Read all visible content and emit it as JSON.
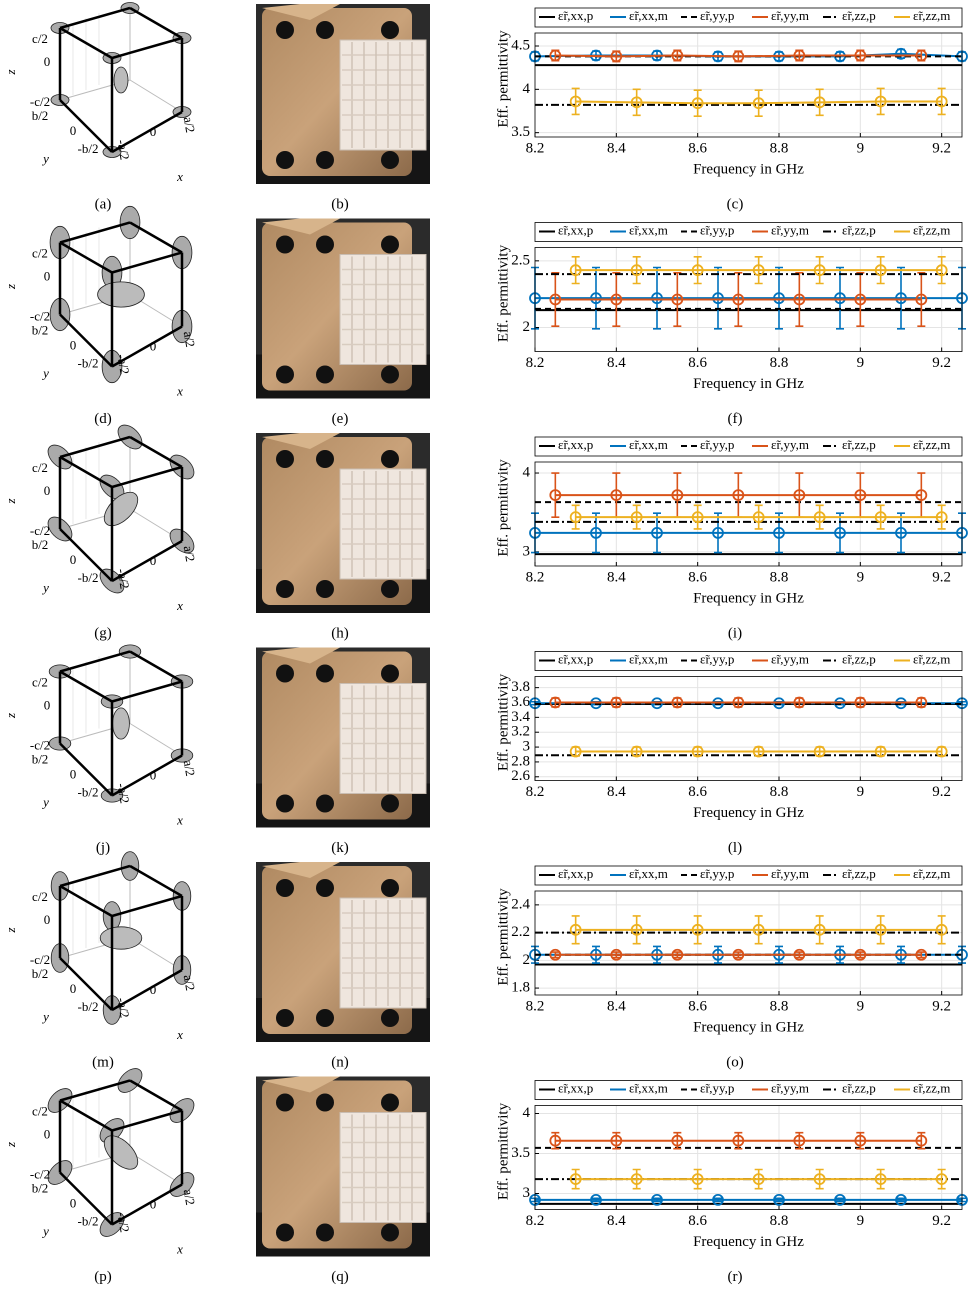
{
  "rows": [
    {
      "captions": [
        "(a)",
        "(b)",
        "(c)"
      ]
    },
    {
      "captions": [
        "(d)",
        "(e)",
        "(f)"
      ]
    },
    {
      "captions": [
        "(g)",
        "(h)",
        "(i)"
      ]
    },
    {
      "captions": [
        "(j)",
        "(k)",
        "(l)"
      ]
    },
    {
      "captions": [
        "(m)",
        "(n)",
        "(o)"
      ]
    },
    {
      "captions": [
        "(p)",
        "(q)",
        "(r)"
      ]
    }
  ],
  "cube_labels": {
    "z_top": "c/2",
    "z_mid": "0",
    "z_bot": "-c/2",
    "y_top": "b/2",
    "y_mid": "0",
    "y_bot": "-b/2",
    "x_mid": "0",
    "x_neg": "-a/2",
    "x_pos": "a/2",
    "z": "z",
    "y": "y",
    "x": "x"
  },
  "chart_data": [
    {
      "type": "line",
      "ylabel": "Eff. permittivity",
      "xlabel": "Frequency in GHz",
      "xlim": [
        8.2,
        9.25
      ],
      "xticks": [
        8.2,
        8.4,
        8.6,
        8.8,
        9,
        9.2
      ],
      "ylim": [
        3.45,
        4.65
      ],
      "yticks": [
        3.5,
        4,
        4.5
      ],
      "grid": true,
      "series": [
        {
          "name": "ε̃r,xx,p",
          "color": "#000000",
          "linestyle": "solid",
          "x": [
            8.2,
            9.25
          ],
          "values": [
            4.28,
            4.28
          ]
        },
        {
          "name": "ε̃r,xx,m",
          "color": "#0072bd",
          "linestyle": "solid",
          "x": [
            8.2,
            8.35,
            8.5,
            8.65,
            8.8,
            8.95,
            9.1,
            9.25
          ],
          "values": [
            4.38,
            4.39,
            4.39,
            4.38,
            4.38,
            4.38,
            4.41,
            4.38
          ],
          "errors": [
            0.05,
            0.05,
            0.05,
            0.05,
            0.05,
            0.05,
            0.05,
            0.05
          ]
        },
        {
          "name": "ε̃r,yy,p",
          "color": "#000000",
          "linestyle": "dashed",
          "x": [
            8.2,
            9.25
          ],
          "values": [
            4.38,
            4.38
          ]
        },
        {
          "name": "ε̃r,yy,m",
          "color": "#d95319",
          "linestyle": "solid",
          "x": [
            8.25,
            8.4,
            8.55,
            8.7,
            8.85,
            9.0,
            9.15
          ],
          "values": [
            4.39,
            4.38,
            4.39,
            4.38,
            4.39,
            4.39,
            4.39
          ],
          "errors": [
            0.06,
            0.06,
            0.06,
            0.06,
            0.06,
            0.06,
            0.06
          ]
        },
        {
          "name": "ε̃r,zz,p",
          "color": "#000000",
          "linestyle": "dashdot",
          "x": [
            8.2,
            9.25
          ],
          "values": [
            3.82,
            3.82
          ]
        },
        {
          "name": "ε̃r,zz,m",
          "color": "#edb120",
          "linestyle": "solid",
          "x": [
            8.3,
            8.45,
            8.6,
            8.75,
            8.9,
            9.05,
            9.2
          ],
          "values": [
            3.86,
            3.85,
            3.84,
            3.84,
            3.85,
            3.86,
            3.86
          ],
          "errors": [
            0.15,
            0.15,
            0.15,
            0.15,
            0.15,
            0.15,
            0.15
          ]
        }
      ]
    },
    {
      "type": "line",
      "ylabel": "Eff. permittivity",
      "xlabel": "Frequency in GHz",
      "xlim": [
        8.2,
        9.25
      ],
      "xticks": [
        8.2,
        8.4,
        8.6,
        8.8,
        9,
        9.2
      ],
      "ylim": [
        1.82,
        2.6
      ],
      "yticks": [
        2,
        2.5
      ],
      "grid": true,
      "series": [
        {
          "name": "ε̃r,xx,p",
          "color": "#000000",
          "linestyle": "solid",
          "x": [
            8.2,
            9.25
          ],
          "values": [
            2.13,
            2.13
          ]
        },
        {
          "name": "ε̃r,xx,m",
          "color": "#0072bd",
          "linestyle": "solid",
          "x": [
            8.2,
            8.35,
            8.5,
            8.65,
            8.8,
            8.95,
            9.1,
            9.25
          ],
          "values": [
            2.22,
            2.22,
            2.22,
            2.22,
            2.22,
            2.22,
            2.22,
            2.22
          ],
          "errors": [
            0.23,
            0.23,
            0.23,
            0.23,
            0.23,
            0.23,
            0.23,
            0.23
          ]
        },
        {
          "name": "ε̃r,yy,p",
          "color": "#000000",
          "linestyle": "dashed",
          "x": [
            8.2,
            9.25
          ],
          "values": [
            2.14,
            2.14
          ]
        },
        {
          "name": "ε̃r,yy,m",
          "color": "#d95319",
          "linestyle": "solid",
          "x": [
            8.25,
            8.4,
            8.55,
            8.7,
            8.85,
            9.0,
            9.15
          ],
          "values": [
            2.21,
            2.21,
            2.21,
            2.21,
            2.21,
            2.21,
            2.21
          ],
          "errors": [
            0.2,
            0.2,
            0.2,
            0.2,
            0.2,
            0.2,
            0.2
          ]
        },
        {
          "name": "ε̃r,zz,p",
          "color": "#000000",
          "linestyle": "dashdot",
          "x": [
            8.2,
            9.25
          ],
          "values": [
            2.4,
            2.4
          ]
        },
        {
          "name": "ε̃r,zz,m",
          "color": "#edb120",
          "linestyle": "solid",
          "x": [
            8.3,
            8.45,
            8.6,
            8.75,
            8.9,
            9.05,
            9.2
          ],
          "values": [
            2.43,
            2.43,
            2.43,
            2.43,
            2.43,
            2.43,
            2.43
          ],
          "errors": [
            0.1,
            0.1,
            0.1,
            0.1,
            0.1,
            0.1,
            0.1
          ]
        }
      ]
    },
    {
      "type": "line",
      "ylabel": "Eff. permittivity",
      "xlabel": "Frequency in GHz",
      "xlim": [
        8.2,
        9.25
      ],
      "xticks": [
        8.2,
        8.4,
        8.6,
        8.8,
        9,
        9.2
      ],
      "ylim": [
        2.82,
        4.14
      ],
      "yticks": [
        3,
        4
      ],
      "grid": true,
      "series": [
        {
          "name": "ε̃r,xx,p",
          "color": "#000000",
          "linestyle": "solid",
          "x": [
            8.2,
            9.25
          ],
          "values": [
            2.97,
            2.97
          ]
        },
        {
          "name": "ε̃r,xx,m",
          "color": "#0072bd",
          "linestyle": "solid",
          "x": [
            8.2,
            8.35,
            8.5,
            8.65,
            8.8,
            8.95,
            9.1,
            9.25
          ],
          "values": [
            3.24,
            3.24,
            3.24,
            3.24,
            3.24,
            3.24,
            3.24,
            3.24
          ],
          "errors": [
            0.25,
            0.25,
            0.25,
            0.25,
            0.25,
            0.25,
            0.25,
            0.25
          ]
        },
        {
          "name": "ε̃r,yy,p",
          "color": "#000000",
          "linestyle": "dashed",
          "x": [
            8.2,
            9.25
          ],
          "values": [
            3.63,
            3.63
          ]
        },
        {
          "name": "ε̃r,yy,m",
          "color": "#d95319",
          "linestyle": "solid",
          "x": [
            8.25,
            8.4,
            8.55,
            8.7,
            8.85,
            9.0,
            9.15
          ],
          "values": [
            3.72,
            3.72,
            3.72,
            3.72,
            3.72,
            3.72,
            3.72
          ],
          "errors": [
            0.28,
            0.28,
            0.28,
            0.28,
            0.28,
            0.28,
            0.28
          ]
        },
        {
          "name": "ε̃r,zz,p",
          "color": "#000000",
          "linestyle": "dashdot",
          "x": [
            8.2,
            9.25
          ],
          "values": [
            3.38,
            3.38
          ]
        },
        {
          "name": "ε̃r,zz,m",
          "color": "#edb120",
          "linestyle": "solid",
          "x": [
            8.3,
            8.45,
            8.6,
            8.75,
            8.9,
            9.05,
            9.2
          ],
          "values": [
            3.44,
            3.44,
            3.44,
            3.44,
            3.44,
            3.44,
            3.44
          ],
          "errors": [
            0.15,
            0.15,
            0.15,
            0.15,
            0.15,
            0.15,
            0.15
          ]
        }
      ]
    },
    {
      "type": "line",
      "ylabel": "Eff. permittivity",
      "xlabel": "Frequency in GHz",
      "xlim": [
        8.2,
        9.25
      ],
      "xticks": [
        8.2,
        8.4,
        8.6,
        8.8,
        9,
        9.2
      ],
      "ylim": [
        2.55,
        3.95
      ],
      "yticks": [
        2.6,
        2.8,
        3,
        3.2,
        3.4,
        3.6,
        3.8
      ],
      "grid": true,
      "series": [
        {
          "name": "ε̃r,xx,p",
          "color": "#000000",
          "linestyle": "solid",
          "x": [
            8.2,
            9.25
          ],
          "values": [
            3.58,
            3.58
          ]
        },
        {
          "name": "ε̃r,xx,m",
          "color": "#0072bd",
          "linestyle": "solid",
          "x": [
            8.2,
            8.35,
            8.5,
            8.65,
            8.8,
            8.95,
            9.1,
            9.25
          ],
          "values": [
            3.59,
            3.59,
            3.59,
            3.59,
            3.59,
            3.59,
            3.59,
            3.59
          ],
          "errors": [
            0.02,
            0.02,
            0.02,
            0.02,
            0.02,
            0.02,
            0.02,
            0.02
          ]
        },
        {
          "name": "ε̃r,yy,p",
          "color": "#000000",
          "linestyle": "dashed",
          "x": [
            8.2,
            9.25
          ],
          "values": [
            3.58,
            3.58
          ]
        },
        {
          "name": "ε̃r,yy,m",
          "color": "#d95319",
          "linestyle": "solid",
          "x": [
            8.25,
            8.4,
            8.55,
            8.7,
            8.85,
            9.0,
            9.15
          ],
          "values": [
            3.6,
            3.6,
            3.6,
            3.6,
            3.6,
            3.6,
            3.6
          ],
          "errors": [
            0.06,
            0.06,
            0.06,
            0.06,
            0.06,
            0.06,
            0.06
          ]
        },
        {
          "name": "ε̃r,zz,p",
          "color": "#000000",
          "linestyle": "dashdot",
          "x": [
            8.2,
            9.25
          ],
          "values": [
            2.89,
            2.89
          ]
        },
        {
          "name": "ε̃r,zz,m",
          "color": "#edb120",
          "linestyle": "solid",
          "x": [
            8.3,
            8.45,
            8.6,
            8.75,
            8.9,
            9.05,
            9.2
          ],
          "values": [
            2.94,
            2.94,
            2.94,
            2.94,
            2.94,
            2.94,
            2.94
          ],
          "errors": [
            0.06,
            0.06,
            0.06,
            0.06,
            0.06,
            0.06,
            0.06
          ]
        }
      ]
    },
    {
      "type": "line",
      "ylabel": "Eff. permittivity",
      "xlabel": "Frequency in GHz",
      "xlim": [
        8.2,
        9.25
      ],
      "xticks": [
        8.2,
        8.4,
        8.6,
        8.8,
        9,
        9.2
      ],
      "ylim": [
        1.75,
        2.5
      ],
      "yticks": [
        1.8,
        2,
        2.2,
        2.4
      ],
      "grid": true,
      "series": [
        {
          "name": "ε̃r,xx,p",
          "color": "#000000",
          "linestyle": "solid",
          "x": [
            8.2,
            9.25
          ],
          "values": [
            1.97,
            1.97
          ]
        },
        {
          "name": "ε̃r,xx,m",
          "color": "#0072bd",
          "linestyle": "solid",
          "x": [
            8.2,
            8.35,
            8.5,
            8.65,
            8.8,
            8.95,
            9.1,
            9.25
          ],
          "values": [
            2.04,
            2.04,
            2.04,
            2.04,
            2.04,
            2.04,
            2.04,
            2.04
          ],
          "errors": [
            0.06,
            0.06,
            0.06,
            0.06,
            0.06,
            0.06,
            0.06,
            0.06
          ]
        },
        {
          "name": "ε̃r,yy,p",
          "color": "#000000",
          "linestyle": "dashed",
          "x": [
            8.2,
            9.25
          ],
          "values": [
            2.04,
            2.04
          ]
        },
        {
          "name": "ε̃r,yy,m",
          "color": "#d95319",
          "linestyle": "solid",
          "x": [
            8.25,
            8.4,
            8.55,
            8.7,
            8.85,
            9.0,
            9.15
          ],
          "values": [
            2.04,
            2.04,
            2.04,
            2.04,
            2.04,
            2.04,
            2.04
          ],
          "errors": [
            0.02,
            0.02,
            0.02,
            0.02,
            0.02,
            0.02,
            0.02
          ]
        },
        {
          "name": "ε̃r,zz,p",
          "color": "#000000",
          "linestyle": "dashdot",
          "x": [
            8.2,
            9.25
          ],
          "values": [
            2.2,
            2.2
          ]
        },
        {
          "name": "ε̃r,zz,m",
          "color": "#edb120",
          "linestyle": "solid",
          "x": [
            8.3,
            8.45,
            8.6,
            8.75,
            8.9,
            9.05,
            9.2
          ],
          "values": [
            2.22,
            2.22,
            2.22,
            2.22,
            2.22,
            2.22,
            2.22
          ],
          "errors": [
            0.1,
            0.1,
            0.1,
            0.1,
            0.1,
            0.1,
            0.1
          ]
        }
      ]
    },
    {
      "type": "line",
      "ylabel": "Eff. permittivity",
      "xlabel": "Frequency in GHz",
      "xlim": [
        8.2,
        9.25
      ],
      "xticks": [
        8.2,
        8.4,
        8.6,
        8.8,
        9,
        9.2
      ],
      "ylim": [
        2.8,
        4.1
      ],
      "yticks": [
        3,
        3.5,
        4
      ],
      "grid": true,
      "series": [
        {
          "name": "ε̃r,xx,p",
          "color": "#000000",
          "linestyle": "solid",
          "x": [
            8.2,
            9.25
          ],
          "values": [
            2.87,
            2.87
          ]
        },
        {
          "name": "ε̃r,xx,m",
          "color": "#0072bd",
          "linestyle": "solid",
          "x": [
            8.2,
            8.35,
            8.5,
            8.65,
            8.8,
            8.95,
            9.1,
            9.25
          ],
          "values": [
            2.92,
            2.92,
            2.92,
            2.92,
            2.92,
            2.92,
            2.92,
            2.92
          ],
          "errors": [
            0.02,
            0.02,
            0.02,
            0.02,
            0.02,
            0.02,
            0.02,
            0.02
          ]
        },
        {
          "name": "ε̃r,yy,p",
          "color": "#000000",
          "linestyle": "dashed",
          "x": [
            8.2,
            9.25
          ],
          "values": [
            3.57,
            3.57
          ]
        },
        {
          "name": "ε̃r,yy,m",
          "color": "#d95319",
          "linestyle": "solid",
          "x": [
            8.25,
            8.4,
            8.55,
            8.7,
            8.85,
            9.0,
            9.15
          ],
          "values": [
            3.66,
            3.66,
            3.66,
            3.66,
            3.66,
            3.66,
            3.66
          ],
          "errors": [
            0.1,
            0.1,
            0.1,
            0.1,
            0.1,
            0.1,
            0.1
          ]
        },
        {
          "name": "ε̃r,zz,p",
          "color": "#000000",
          "linestyle": "dashdot",
          "x": [
            8.2,
            9.25
          ],
          "values": [
            3.18,
            3.18
          ]
        },
        {
          "name": "ε̃r,zz,m",
          "color": "#edb120",
          "linestyle": "solid",
          "x": [
            8.3,
            8.45,
            8.6,
            8.75,
            8.9,
            9.05,
            9.2
          ],
          "values": [
            3.18,
            3.18,
            3.18,
            3.18,
            3.18,
            3.18,
            3.18
          ],
          "errors": [
            0.12,
            0.12,
            0.12,
            0.12,
            0.12,
            0.12,
            0.12
          ]
        }
      ]
    }
  ]
}
